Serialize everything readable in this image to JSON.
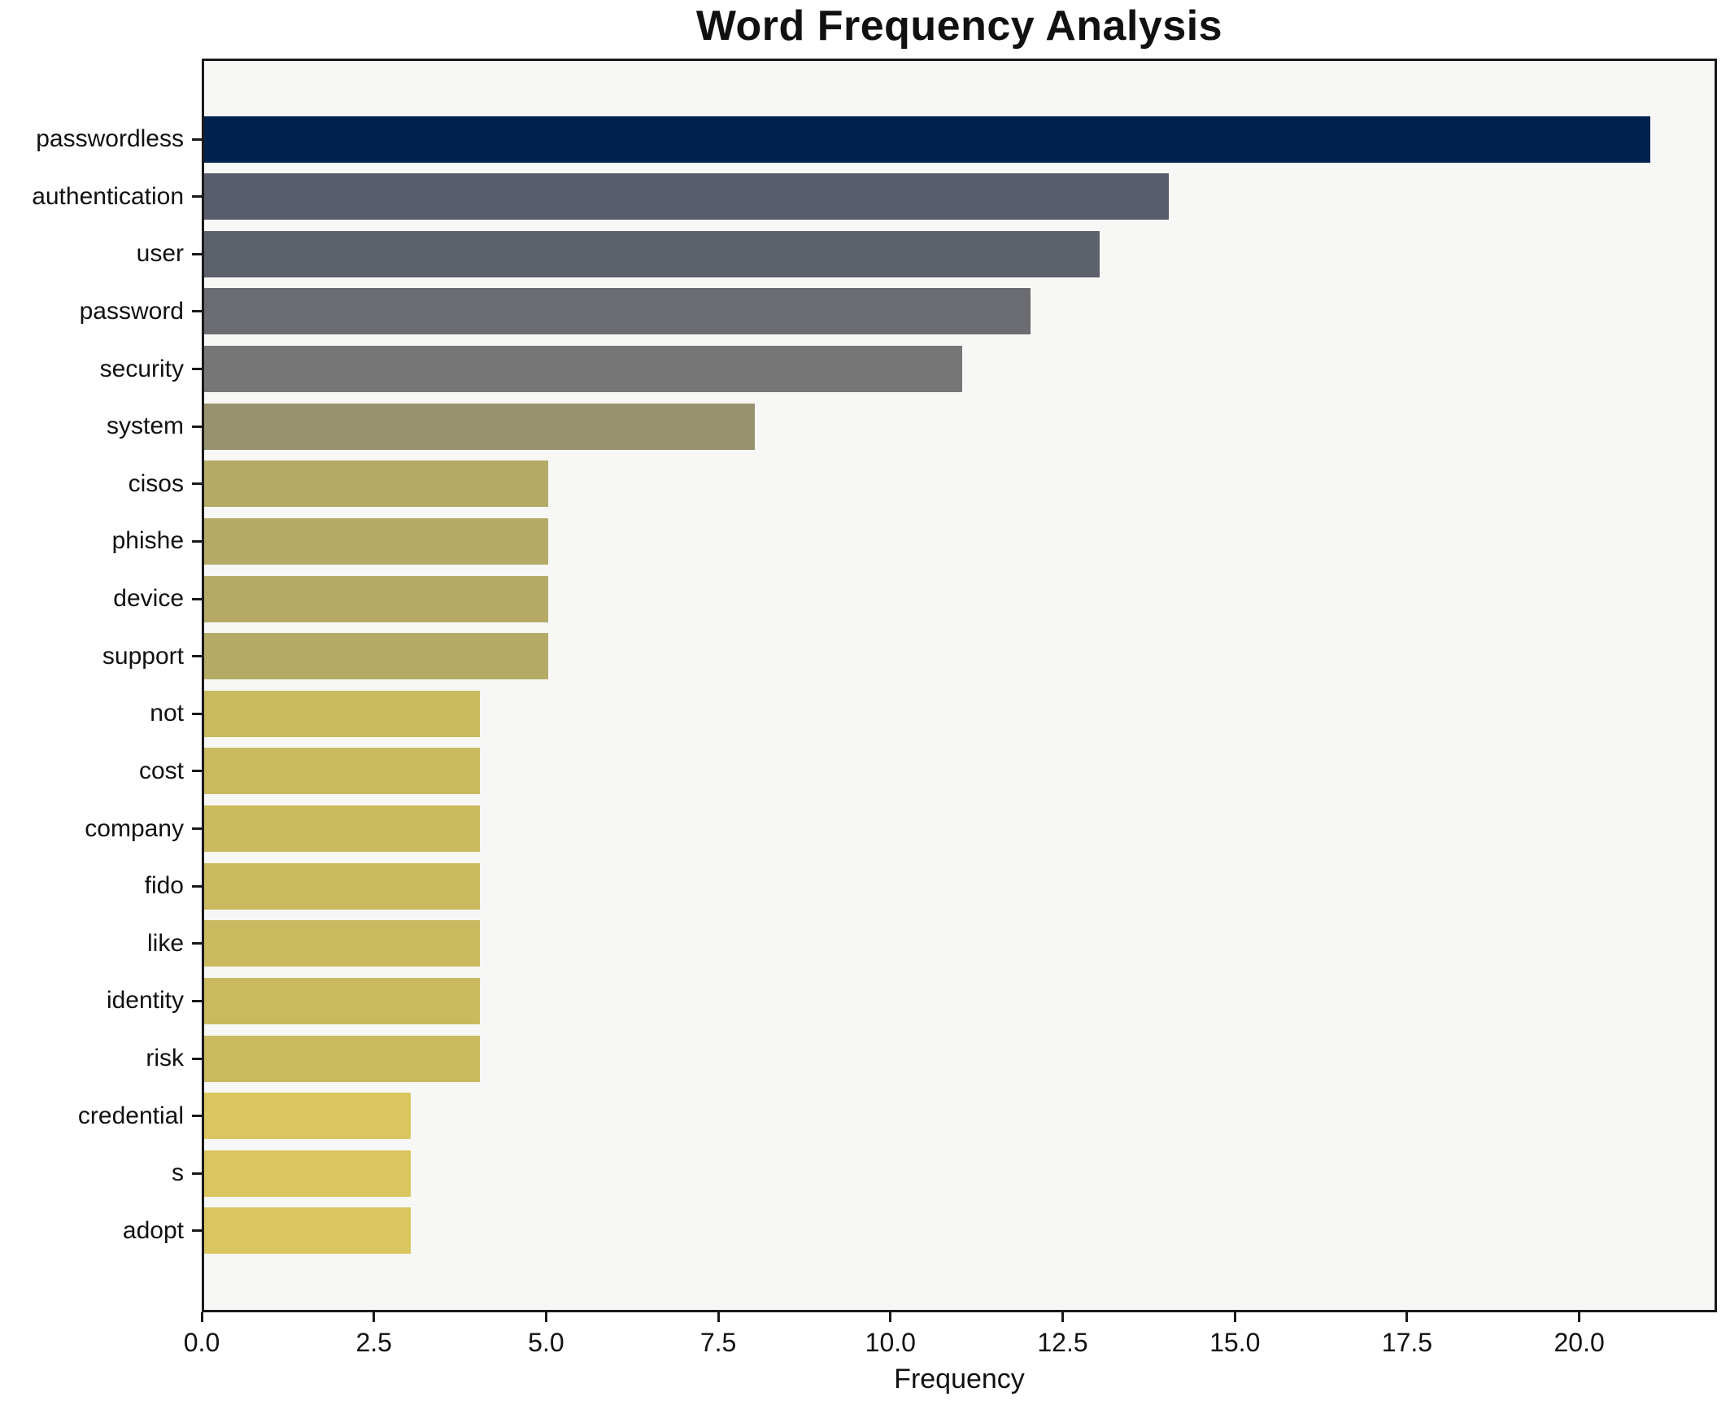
{
  "title": "Word Frequency Analysis",
  "chart_data": {
    "type": "bar",
    "orientation": "horizontal",
    "title": "Word Frequency Analysis",
    "xlabel": "Frequency",
    "ylabel": "",
    "categories": [
      "passwordless",
      "authentication",
      "user",
      "password",
      "security",
      "system",
      "cisos",
      "phishe",
      "device",
      "support",
      "not",
      "cost",
      "company",
      "fido",
      "like",
      "identity",
      "risk",
      "credential",
      "s",
      "adopt"
    ],
    "values": [
      21,
      14,
      13,
      12,
      11,
      8,
      5,
      5,
      5,
      5,
      4,
      4,
      4,
      4,
      4,
      4,
      4,
      3,
      3,
      3
    ],
    "bar_colors": [
      "#01224f",
      "#575d6d",
      "#5d616c",
      "#6a6c71",
      "#767676",
      "#989270",
      "#b4aa66",
      "#b4aa66",
      "#b4aa66",
      "#b4aa66",
      "#c9ba60",
      "#c9ba60",
      "#c9ba60",
      "#c9ba60",
      "#c9ba60",
      "#c9ba60",
      "#c9ba60",
      "#dac65e",
      "#dac65e",
      "#dac65e"
    ],
    "colormap": "cividis",
    "xlim": [
      0,
      22
    ],
    "x_ticks": [
      0.0,
      2.5,
      5.0,
      7.5,
      10.0,
      12.5,
      15.0,
      17.5,
      20.0
    ],
    "x_tick_labels": [
      "0.0",
      "2.5",
      "5.0",
      "7.5",
      "10.0",
      "12.5",
      "15.0",
      "17.5",
      "20.0"
    ],
    "grid": false,
    "legend": false,
    "plot_background": "#f7f7f5",
    "figure_background": "#ffffff",
    "bar_height_frac": 0.8
  }
}
